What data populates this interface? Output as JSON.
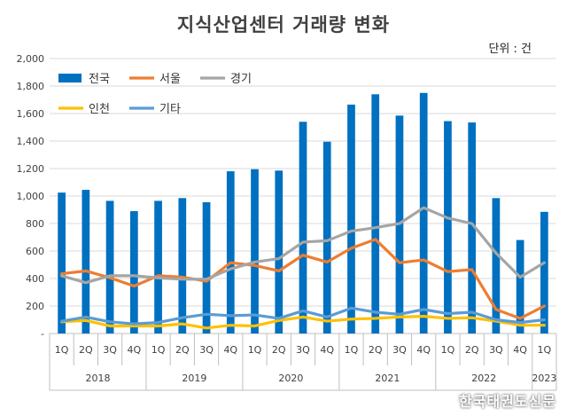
{
  "chart_data": {
    "type": "bar",
    "title": "지식산업센터 거래량 변화",
    "unit_label": "단위 : 건",
    "quarters": [
      "1Q",
      "2Q",
      "3Q",
      "4Q",
      "1Q",
      "2Q",
      "3Q",
      "4Q",
      "1Q",
      "2Q",
      "3Q",
      "4Q",
      "1Q",
      "2Q",
      "3Q",
      "4Q",
      "1Q",
      "2Q",
      "3Q",
      "4Q",
      "1Q"
    ],
    "years": [
      {
        "label": "2018",
        "quarters": 4
      },
      {
        "label": "2019",
        "quarters": 4
      },
      {
        "label": "2020",
        "quarters": 4
      },
      {
        "label": "2021",
        "quarters": 4
      },
      {
        "label": "2022",
        "quarters": 4
      },
      {
        "label": "2023",
        "quarters": 1
      }
    ],
    "ylim": [
      0,
      2000
    ],
    "yticks": [
      0,
      200,
      400,
      600,
      800,
      1000,
      1200,
      1400,
      1600,
      1800,
      2000
    ],
    "ytick_labels": [
      "-",
      "200",
      "400",
      "600",
      "800",
      "1,000",
      "1,200",
      "1,400",
      "1,600",
      "1,800",
      "2,000"
    ],
    "grid": true,
    "legend_position": "top-left",
    "series": [
      {
        "name": "전국",
        "kind": "bar",
        "color": "#0070c0",
        "values": [
          1025,
          1045,
          965,
          890,
          965,
          985,
          955,
          1180,
          1195,
          1185,
          1540,
          1395,
          1665,
          1740,
          1585,
          1750,
          1545,
          1535,
          985,
          680,
          885
        ]
      },
      {
        "name": "서울",
        "kind": "line",
        "color": "#ed7d31",
        "values": [
          435,
          455,
          405,
          345,
          420,
          410,
          380,
          515,
          495,
          455,
          570,
          520,
          620,
          685,
          515,
          535,
          450,
          465,
          175,
          110,
          200
        ]
      },
      {
        "name": "경기",
        "kind": "line",
        "color": "#a5a5a5",
        "values": [
          420,
          370,
          420,
          420,
          405,
          395,
          395,
          470,
          520,
          545,
          665,
          675,
          745,
          770,
          800,
          915,
          840,
          800,
          585,
          410,
          515
        ]
      },
      {
        "name": "인천",
        "kind": "line",
        "color": "#ffc000",
        "values": [
          85,
          95,
          55,
          55,
          55,
          70,
          40,
          60,
          55,
          95,
          120,
          90,
          105,
          110,
          120,
          125,
          110,
          115,
          90,
          60,
          60
        ]
      },
      {
        "name": "기타",
        "kind": "line",
        "color": "#5b9bd5",
        "values": [
          90,
          120,
          85,
          70,
          80,
          115,
          140,
          130,
          135,
          110,
          165,
          120,
          185,
          155,
          140,
          175,
          145,
          155,
          100,
          80,
          100
        ]
      }
    ]
  },
  "watermark": "한국태권도신문"
}
